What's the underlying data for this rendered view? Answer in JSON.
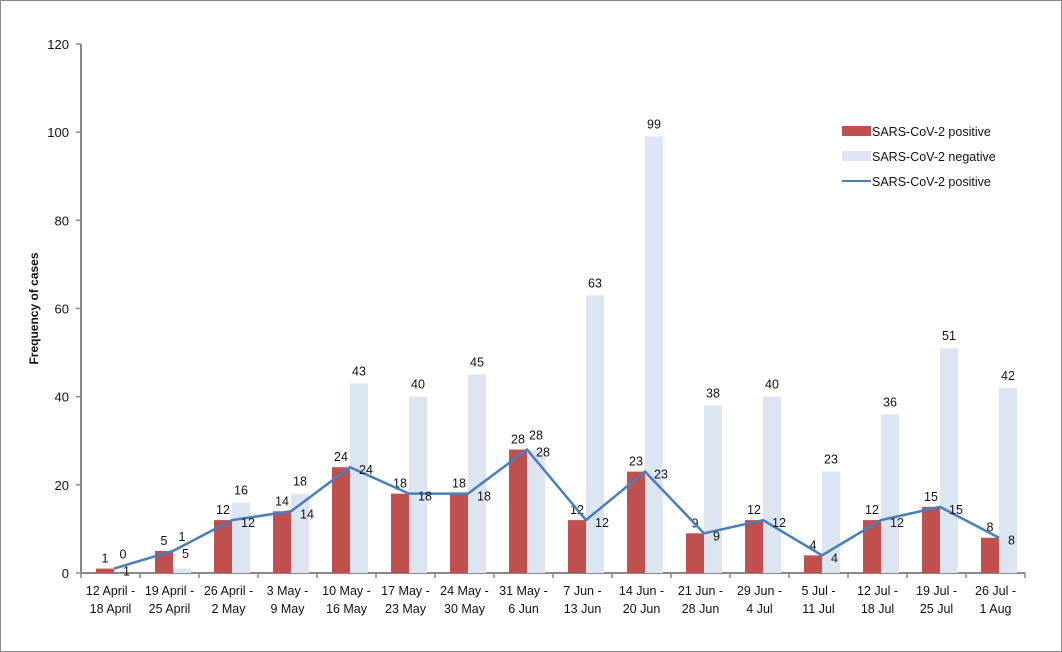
{
  "chart_data": {
    "type": "bar",
    "title": "",
    "xlabel": "",
    "ylabel": "Frequency of cases",
    "ylim": [
      0,
      120
    ],
    "yticks": [
      0,
      20,
      40,
      60,
      80,
      100,
      120
    ],
    "grid": false,
    "legend_position": "right",
    "categories": [
      [
        "12 April -",
        "18 April"
      ],
      [
        "19 April -",
        "25 April"
      ],
      [
        "26 April -",
        "2 May"
      ],
      [
        "3 May -",
        "9 May"
      ],
      [
        "10 May -",
        "16 May"
      ],
      [
        "17 May -",
        "23 May"
      ],
      [
        "24 May -",
        "30 May"
      ],
      [
        "31 May -",
        "6 Jun"
      ],
      [
        "7 Jun -",
        "13 Jun"
      ],
      [
        "14 Jun -",
        "20 Jun"
      ],
      [
        "21 Jun -",
        "28 Jun"
      ],
      [
        "29 Jun -",
        "4 Jul"
      ],
      [
        "5 Jul -",
        "11 Jul"
      ],
      [
        "12 Jul -",
        "18 Jul"
      ],
      [
        "19 Jul -",
        "25 Jul"
      ],
      [
        "26 Jul -",
        "1 Aug"
      ]
    ],
    "series": [
      {
        "name": "SARS-CoV-2 positive",
        "type": "bar",
        "color": "#c0504d",
        "values": [
          1,
          5,
          12,
          14,
          24,
          18,
          18,
          28,
          12,
          23,
          9,
          12,
          4,
          12,
          15,
          8
        ]
      },
      {
        "name": "SARS-CoV-2 negative",
        "type": "bar",
        "color": "#dce6f2",
        "values": [
          0,
          1,
          16,
          18,
          43,
          40,
          45,
          28,
          63,
          99,
          38,
          40,
          23,
          36,
          51,
          42
        ]
      },
      {
        "name": "SARS-CoV-2 positive",
        "type": "line",
        "color": "#4a7ebb",
        "values": [
          1,
          5,
          12,
          14,
          24,
          18,
          18,
          28,
          12,
          23,
          9,
          12,
          4,
          12,
          15,
          8
        ]
      }
    ]
  }
}
